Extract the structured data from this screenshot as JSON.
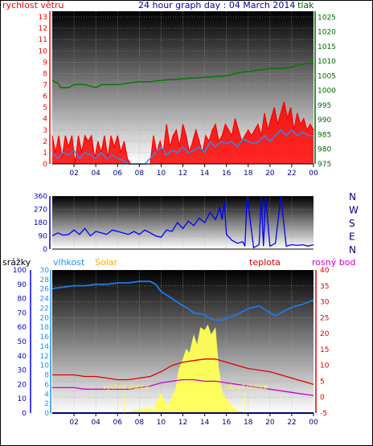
{
  "chart_data": [
    {
      "type": "line",
      "title": "24 hour graph day : 04 March 2014",
      "left_label": "rychlost větru",
      "right_label": "tlak",
      "x_ticks": [
        "02",
        "04",
        "06",
        "08",
        "10",
        "12",
        "14",
        "16",
        "18",
        "20",
        "22",
        "00"
      ],
      "left_ticks": [
        "0",
        "1",
        "2",
        "3",
        "4",
        "5",
        "6",
        "7",
        "8",
        "9",
        "10",
        "11",
        "12",
        "13"
      ],
      "right_ticks": [
        "975",
        "980",
        "985",
        "990",
        "995",
        "1000",
        "1005",
        "1010",
        "1015",
        "1020",
        "1025"
      ],
      "ylim_left": [
        0,
        13.5
      ],
      "ylim_right": [
        975,
        1027
      ],
      "grid": true,
      "series": [
        {
          "key": "pressure",
          "axis": "right",
          "color": "#007700",
          "x": [
            0,
            0.5,
            0.8,
            1.5,
            2,
            3,
            4,
            4.5,
            6,
            8,
            9,
            10,
            12,
            14,
            16,
            17,
            18,
            19,
            20,
            21,
            22,
            23,
            24
          ],
          "values": [
            1003.5,
            1002.5,
            1001,
            1001,
            1002,
            1002,
            1001,
            1002,
            1002,
            1003,
            1003,
            1003.5,
            1004,
            1004.5,
            1005,
            1006,
            1006.5,
            1007,
            1007.5,
            1007.5,
            1008,
            1009,
            1009.5
          ]
        },
        {
          "key": "gust",
          "axis": "left",
          "color": "#ff0000",
          "x": [
            0,
            0.3,
            0.6,
            0.9,
            1.2,
            1.5,
            1.8,
            2.1,
            2.4,
            2.7,
            3,
            3.3,
            3.6,
            3.9,
            4.2,
            4.5,
            4.8,
            5.1,
            5.4,
            5.7,
            6,
            6.3,
            6.6,
            6.9,
            7.2,
            7.5,
            7.8,
            8.1,
            8.4,
            8.7,
            9,
            9.3,
            9.6,
            9.9,
            10.2,
            10.5,
            10.8,
            11.1,
            11.4,
            11.7,
            12,
            12.3,
            12.6,
            12.9,
            13.2,
            13.5,
            13.8,
            14.1,
            14.4,
            14.7,
            15,
            15.3,
            15.6,
            15.9,
            16.2,
            16.5,
            16.8,
            17.1,
            17.4,
            17.7,
            18,
            18.3,
            18.6,
            18.9,
            19.2,
            19.5,
            19.8,
            20.1,
            20.4,
            20.7,
            21,
            21.3,
            21.6,
            21.9,
            22.2,
            22.5,
            22.8,
            23.1,
            23.4,
            23.7,
            24
          ],
          "values": [
            2.5,
            1,
            2.5,
            0.5,
            2.5,
            1.5,
            2.5,
            0,
            2.5,
            1,
            2.5,
            2,
            2.5,
            0.5,
            2,
            1,
            2.5,
            0.5,
            2.5,
            1.5,
            2.5,
            1,
            2,
            0.5,
            0,
            0,
            0,
            0,
            0,
            0,
            0,
            2.5,
            1,
            2,
            1,
            3.5,
            1.5,
            2.5,
            3,
            1.5,
            3.5,
            2.5,
            1,
            2,
            3,
            2,
            1,
            2.5,
            2,
            3,
            3.5,
            2,
            2.5,
            3.5,
            3,
            2.5,
            4,
            3,
            2,
            2.5,
            3,
            2.5,
            3,
            3.5,
            2.5,
            4.5,
            3,
            4,
            5,
            3.5,
            4.5,
            5.5,
            4,
            5,
            3,
            4.5,
            3.5,
            4,
            3,
            3.5,
            3
          ]
        },
        {
          "key": "average",
          "axis": "left",
          "color": "#1e90ff",
          "x": [
            0,
            0.5,
            1,
            1.5,
            2,
            2.5,
            3,
            3.5,
            4,
            4.5,
            5,
            5.5,
            6,
            6.5,
            7,
            7.5,
            8,
            8.5,
            9,
            9.5,
            10,
            10.5,
            11,
            11.5,
            12,
            12.5,
            13,
            13.5,
            14,
            14.5,
            15,
            15.5,
            16,
            16.5,
            17,
            17.5,
            18,
            18.5,
            19,
            19.5,
            20,
            20.5,
            21,
            21.5,
            22,
            22.5,
            23,
            23.5,
            24
          ],
          "values": [
            1,
            0.5,
            1,
            0.8,
            1.2,
            0.5,
            1,
            0.8,
            0.5,
            1,
            0.5,
            0.8,
            0.5,
            0.3,
            0,
            0,
            0,
            0,
            0.5,
            1,
            1.5,
            0.8,
            1.2,
            1,
            1.5,
            1,
            1.2,
            1.5,
            1,
            2,
            1.5,
            2,
            1.8,
            2,
            1.5,
            2.2,
            2,
            1.8,
            2,
            2.5,
            2,
            2.5,
            3,
            2.5,
            3,
            2.5,
            2.8,
            2.5,
            2.5
          ]
        }
      ]
    },
    {
      "type": "scatter",
      "title": "",
      "left_ticks": [
        "0",
        "90",
        "180",
        "270",
        "360"
      ],
      "right_labels": [
        "N",
        "W",
        "S",
        "E",
        "N"
      ],
      "x_ticks": [
        "02",
        "04",
        "06",
        "08",
        "10",
        "12",
        "14",
        "16",
        "18",
        "20",
        "22",
        "00"
      ],
      "ylim": [
        0,
        360
      ],
      "grid": true,
      "series": [
        {
          "key": "direction",
          "color": "#0000ff",
          "x": [
            0,
            0.5,
            1,
            1.5,
            2,
            2.5,
            3,
            3.5,
            4,
            4.5,
            5,
            5.5,
            6,
            6.5,
            7,
            7.5,
            8,
            8.5,
            9,
            9.5,
            10,
            10.5,
            11,
            11.5,
            12,
            12.5,
            13,
            13.5,
            14,
            14.5,
            15,
            15.2,
            15.4,
            15.6,
            15.8,
            16,
            16.5,
            17,
            17.5,
            17.7,
            17.9,
            18.5,
            19,
            19.2,
            19.4,
            19.6,
            20,
            20.5,
            21,
            21.5,
            22,
            22.5,
            23,
            23.5,
            24
          ],
          "values": [
            90,
            110,
            95,
            100,
            130,
            100,
            140,
            90,
            120,
            110,
            100,
            130,
            120,
            110,
            100,
            120,
            100,
            130,
            110,
            90,
            80,
            130,
            120,
            180,
            140,
            190,
            160,
            210,
            180,
            250,
            200,
            240,
            280,
            200,
            320,
            100,
            60,
            40,
            50,
            20,
            360,
            10,
            30,
            360,
            20,
            360,
            20,
            40,
            360,
            20,
            30,
            25,
            30,
            20,
            30
          ]
        }
      ]
    },
    {
      "type": "area",
      "left1_label": "srážky",
      "left2_label": "vlhkost",
      "solar_label": "Solar",
      "temp_label": "teplota",
      "dew_label": "rosný bod",
      "sunrise_label": "východ slunce",
      "sunset_label": "západ slunce",
      "left1_ticks": [
        "0",
        "10",
        "20",
        "30",
        "40",
        "50",
        "60",
        "70",
        "80",
        "90",
        "100"
      ],
      "left2_ticks": [
        "0",
        "2",
        "4",
        "6",
        "8",
        "10",
        "12",
        "14",
        "16",
        "18",
        "20",
        "22",
        "24",
        "26",
        "28",
        "30"
      ],
      "right_ticks": [
        "-5",
        "0",
        "5",
        "10",
        "15",
        "20",
        "25",
        "30",
        "35",
        "40"
      ],
      "x_ticks": [
        "02",
        "04",
        "06",
        "08",
        "10",
        "12",
        "14",
        "16",
        "18",
        "20",
        "22",
        "00"
      ],
      "ylim_left1": [
        0,
        100
      ],
      "ylim_right": [
        -5,
        40
      ],
      "sunrise_hour": 6.6,
      "sunset_hour": 17.7,
      "grid": true,
      "series": [
        {
          "key": "humidity",
          "axis": "left1",
          "color": "#1e7be6",
          "x": [
            0,
            1,
            2,
            3,
            4,
            5,
            6,
            7,
            8,
            9,
            9.5,
            10,
            11,
            12,
            12.5,
            13,
            14,
            14.5,
            15,
            15.5,
            16,
            17,
            18,
            19,
            20,
            20.5,
            21,
            22,
            23,
            24
          ],
          "values": [
            87,
            88,
            89,
            89,
            90,
            90,
            91,
            91,
            92,
            92,
            90,
            85,
            80,
            75,
            73,
            70,
            69,
            66,
            65,
            65,
            66,
            69,
            73,
            75,
            70,
            68,
            70,
            74,
            76,
            79
          ]
        },
        {
          "key": "solar",
          "axis": "left1",
          "color": "#ffff55",
          "x": [
            0,
            6.6,
            7,
            7.5,
            8,
            8.5,
            9,
            9.3,
            9.6,
            10,
            10.3,
            10.6,
            11,
            11.3,
            11.6,
            12,
            12.3,
            12.6,
            13,
            13.3,
            13.6,
            14,
            14.3,
            14.6,
            15,
            15.3,
            15.6,
            16,
            16.5,
            17,
            17.7,
            24
          ],
          "values": [
            0,
            0,
            1,
            2,
            3,
            3,
            4,
            2,
            8,
            14,
            9,
            4,
            12,
            16,
            30,
            38,
            45,
            42,
            55,
            48,
            60,
            58,
            62,
            55,
            60,
            32,
            15,
            10,
            5,
            2,
            0,
            0
          ]
        },
        {
          "key": "temperature",
          "axis": "right",
          "color": "#dd0000",
          "x": [
            0,
            1,
            2,
            3,
            4,
            5,
            6,
            7,
            8,
            9,
            10,
            11,
            12,
            13,
            14,
            15,
            16,
            17,
            18,
            19,
            20,
            21,
            22,
            23,
            24
          ],
          "values": [
            7,
            7,
            7,
            6.5,
            6.5,
            6,
            5.5,
            5.5,
            6,
            6.5,
            8,
            10,
            11,
            11.5,
            12,
            12,
            11,
            10,
            9,
            8.5,
            8,
            7,
            6,
            5,
            4
          ]
        },
        {
          "key": "dewpoint",
          "axis": "right",
          "color": "#cc00cc",
          "x": [
            0,
            1,
            2,
            3,
            4,
            5,
            6,
            7,
            8,
            9,
            10,
            11,
            12,
            13,
            14,
            15,
            16,
            17,
            18,
            19,
            20,
            21,
            22,
            23,
            24
          ],
          "values": [
            3,
            3,
            3,
            2.5,
            2.5,
            2.5,
            2.5,
            2.5,
            3,
            3.5,
            4.5,
            5,
            5.5,
            5.5,
            5,
            5,
            4.5,
            4,
            3.5,
            3,
            2.5,
            2,
            1.5,
            1,
            0.5
          ]
        },
        {
          "key": "rain",
          "axis": "left1",
          "color": "#0000ff",
          "x": [
            0,
            24
          ],
          "values": [
            0,
            0
          ]
        }
      ]
    }
  ]
}
